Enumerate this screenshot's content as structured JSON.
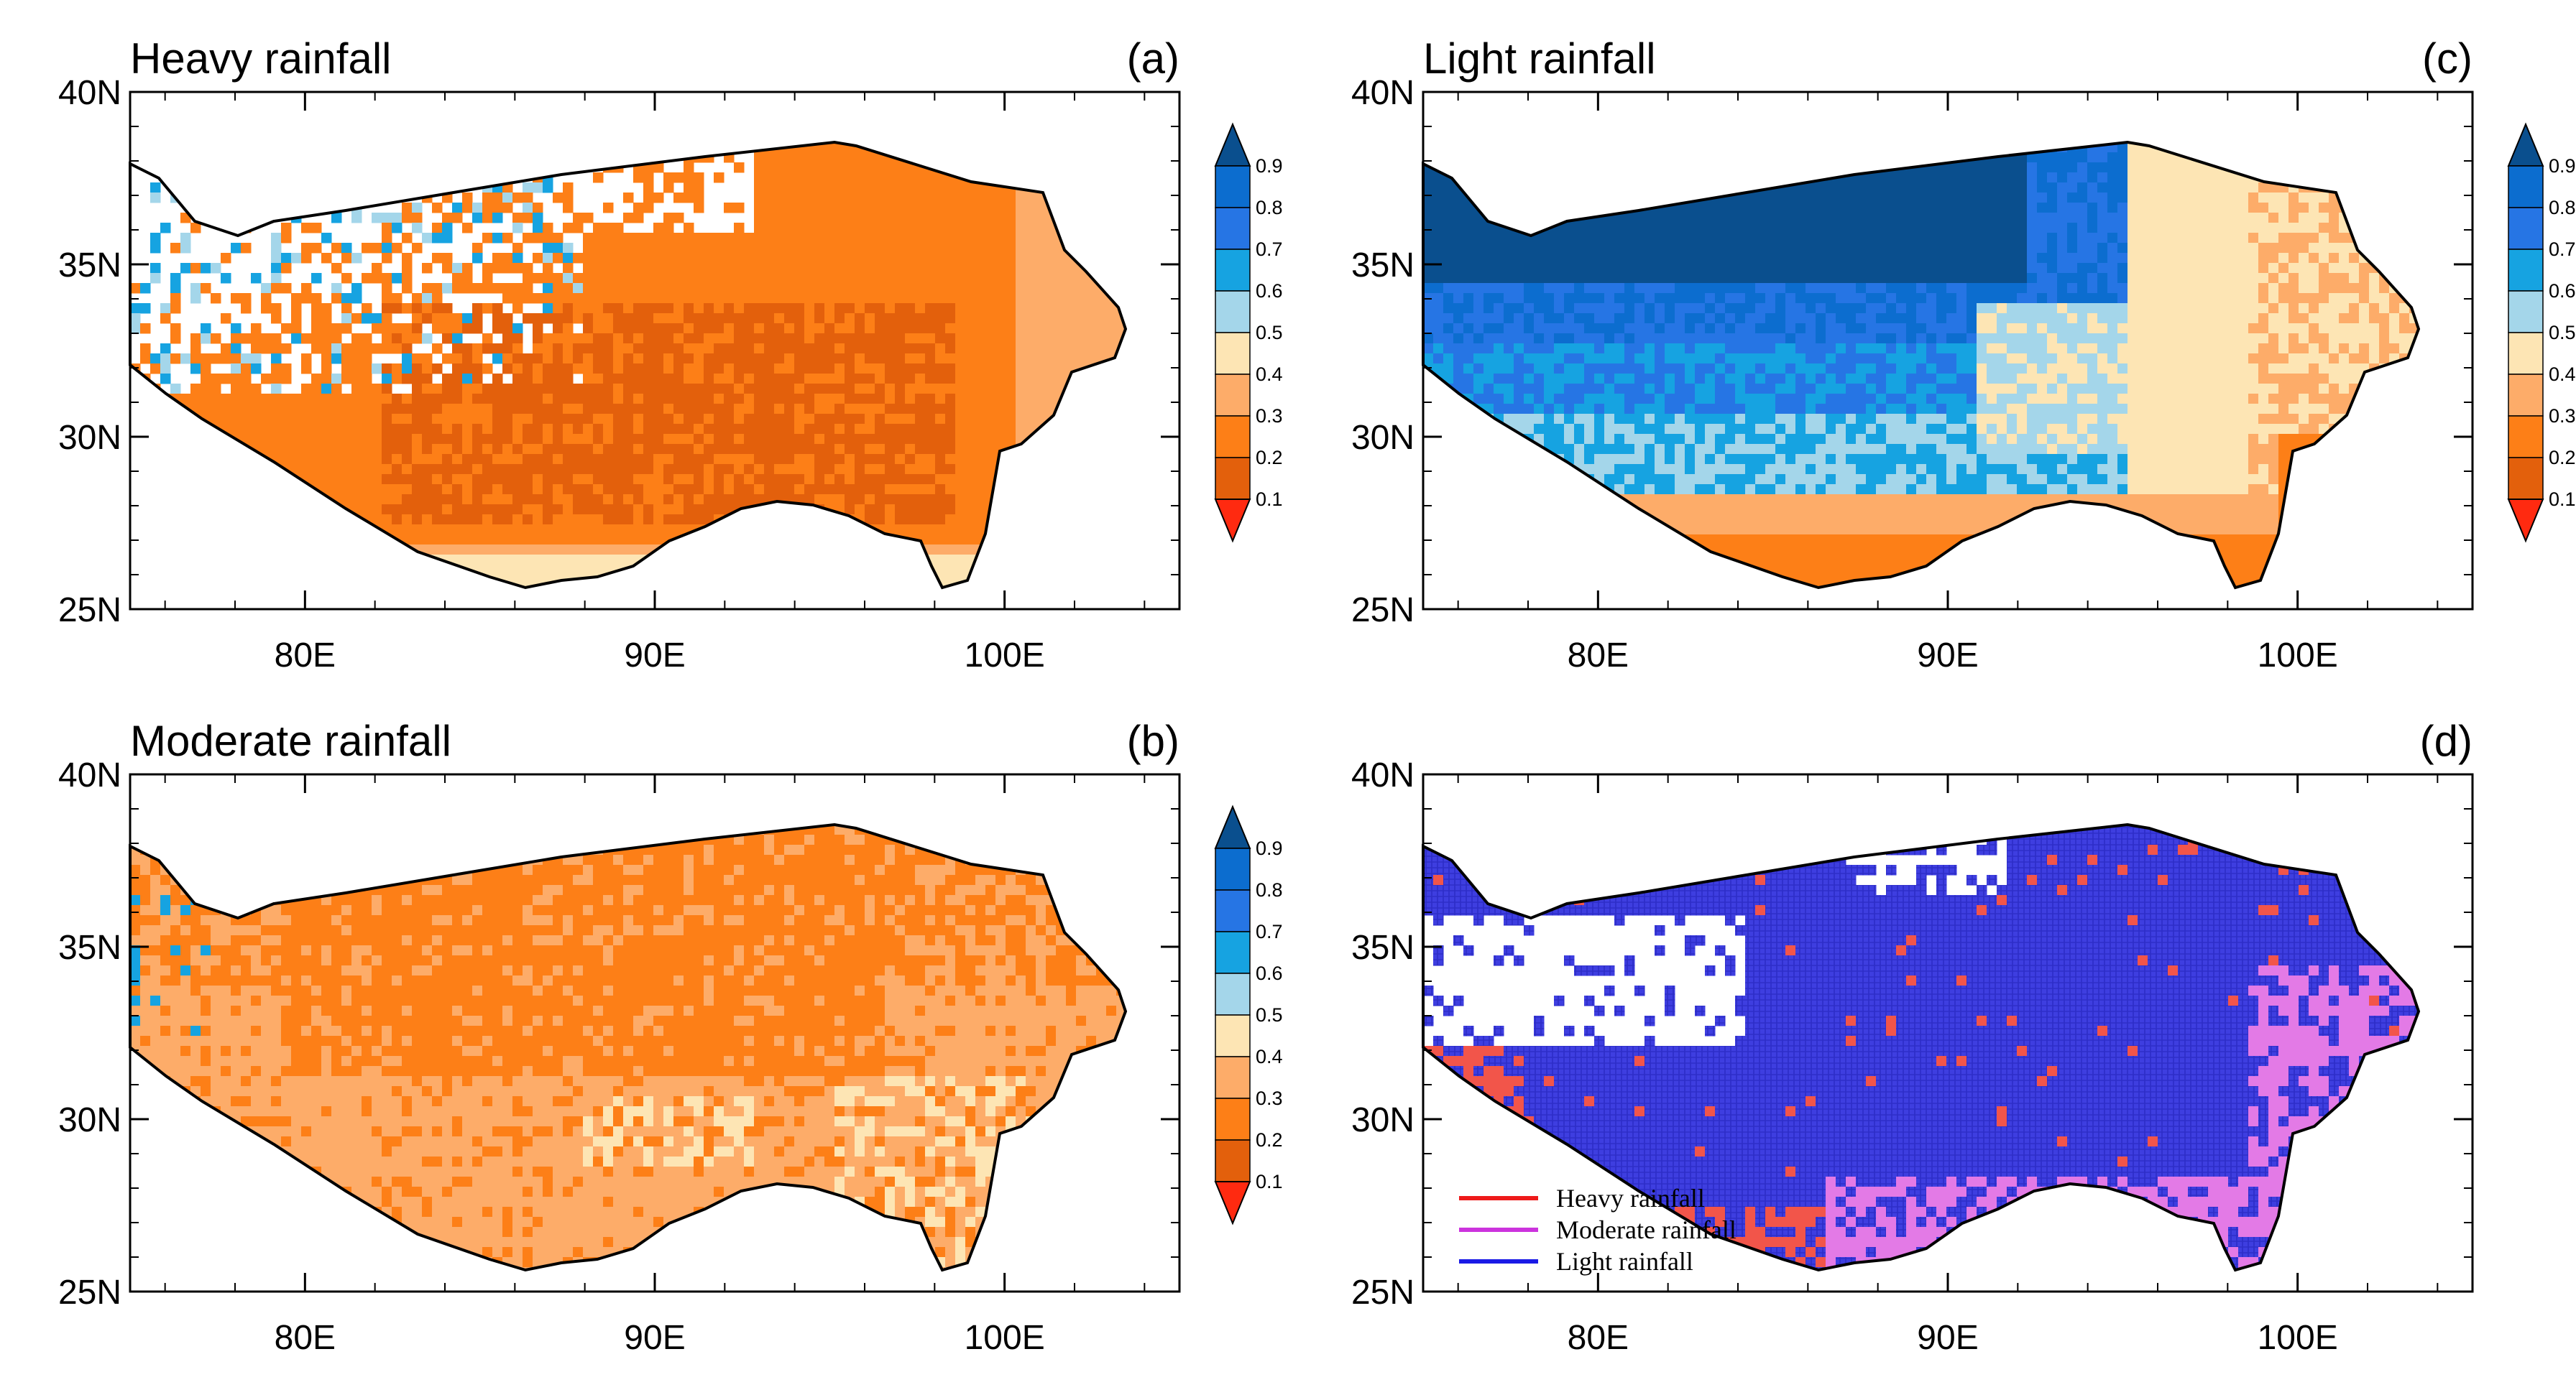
{
  "panels": [
    {
      "id": "a",
      "title": "Heavy rainfall",
      "label": "(a)",
      "kind": "fraction",
      "scheme": "heavy"
    },
    {
      "id": "c",
      "title": "Light rainfall",
      "label": "(c)",
      "kind": "fraction",
      "scheme": "light"
    },
    {
      "id": "b",
      "title": "Moderate rainfall",
      "label": "(b)",
      "kind": "fraction",
      "scheme": "moderate"
    },
    {
      "id": "d",
      "title": "",
      "label": "(d)",
      "kind": "dominant",
      "scheme": "dominant"
    }
  ],
  "axes": {
    "lon_range": [
      75,
      105
    ],
    "lat_range": [
      25,
      40
    ],
    "x_ticks": [
      {
        "value": 80,
        "label": "80E"
      },
      {
        "value": 90,
        "label": "90E"
      },
      {
        "value": 100,
        "label": "100E"
      }
    ],
    "y_ticks": [
      {
        "value": 40,
        "label": "40N"
      },
      {
        "value": 35,
        "label": "35N"
      },
      {
        "value": 30,
        "label": "30N"
      },
      {
        "value": 25,
        "label": "25N"
      }
    ]
  },
  "colorbar": {
    "levels": [
      "0.1",
      "0.2",
      "0.3",
      "0.4",
      "0.5",
      "0.6",
      "0.7",
      "0.8",
      "0.9"
    ],
    "colors": [
      "#ff2a10",
      "#e3600c",
      "#fd7f17",
      "#fdac69",
      "#fde5b4",
      "#a4d6ea",
      "#16a3e1",
      "#2675e4",
      "#0c6dcf",
      "#0a4f8e"
    ]
  },
  "legend": {
    "items": [
      {
        "label": "Heavy rainfall",
        "color": "#ee1a1a"
      },
      {
        "label": "Moderate rainfall",
        "color": "#cc33dd"
      },
      {
        "label": "Light rainfall",
        "color": "#1a1ae6"
      }
    ]
  },
  "colors": {
    "dominant_light": "#3e3ee0",
    "dominant_moderate": "#e37ae6",
    "dominant_heavy": "#f2554a",
    "outline": "#000000"
  }
}
